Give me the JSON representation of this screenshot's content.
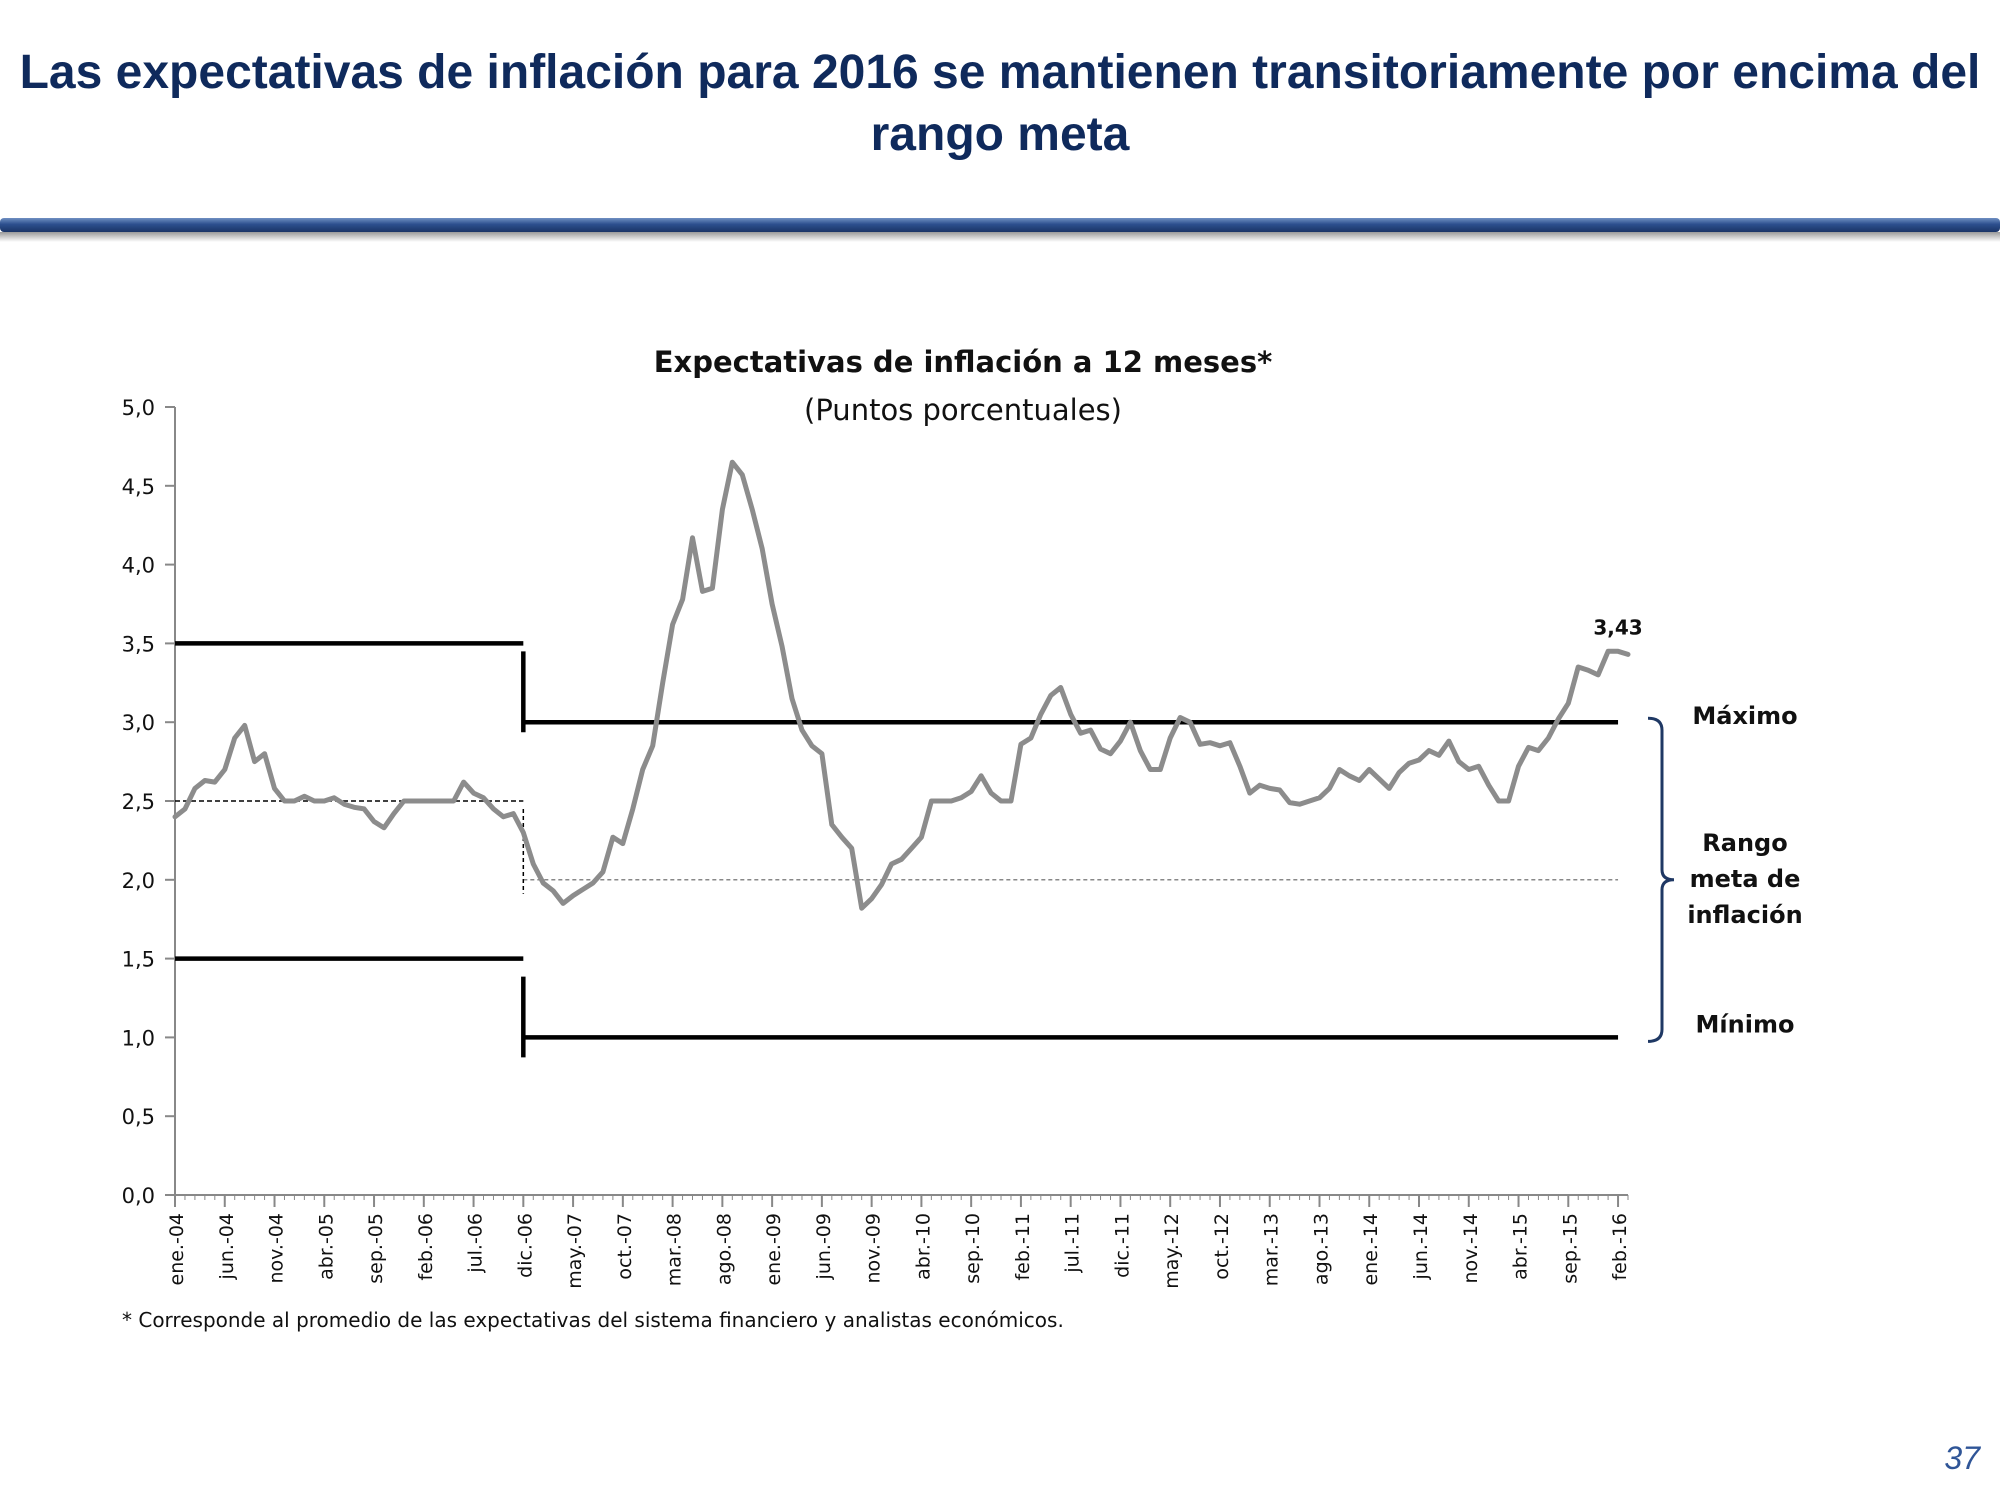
{
  "slide": {
    "title": "Las expectativas de inflación para 2016 se mantienen transitoriamente por encima del rango meta",
    "footnote": "* Corresponde al promedio de las expectativas del sistema financiero y analistas económicos.",
    "page_number": "37"
  },
  "chart_data": {
    "type": "line",
    "title": "Expectativas de inflación a 12 meses*",
    "subtitle": "(Puntos porcentuales)",
    "xlabel": "",
    "ylabel": "",
    "ylim": [
      0,
      5
    ],
    "yticks": [
      "0,0",
      "0,5",
      "1,0",
      "1,5",
      "2,0",
      "2,5",
      "3,0",
      "3,5",
      "4,0",
      "4,5",
      "5,0"
    ],
    "xtick_labels": [
      "ene.-04",
      "jun.-04",
      "nov.-04",
      "abr.-05",
      "sep.-05",
      "feb.-06",
      "jul.-06",
      "dic.-06",
      "may.-07",
      "oct.-07",
      "mar.-08",
      "ago.-08",
      "ene.-09",
      "jun.-09",
      "nov.-09",
      "abr.-10",
      "sep.-10",
      "feb.-11",
      "jul.-11",
      "dic.-11",
      "may.-12",
      "oct.-12",
      "mar.-13",
      "ago.-13",
      "ene.-14",
      "jun.-14",
      "nov.-14",
      "abr.-15",
      "sep.-15",
      "feb.-16"
    ],
    "x_start": "ene.-04",
    "series": [
      {
        "color": "#8c8c8c",
        "values": [
          2.4,
          2.45,
          2.58,
          2.63,
          2.62,
          2.7,
          2.9,
          2.98,
          2.75,
          2.8,
          2.58,
          2.5,
          2.5,
          2.53,
          2.5,
          2.5,
          2.52,
          2.48,
          2.46,
          2.45,
          2.37,
          2.33,
          2.42,
          2.5,
          2.5,
          2.5,
          2.5,
          2.5,
          2.5,
          2.62,
          2.55,
          2.52,
          2.45,
          2.4,
          2.42,
          2.3,
          2.1,
          1.98,
          1.93,
          1.85,
          1.9,
          1.94,
          1.98,
          2.05,
          2.27,
          2.23,
          2.45,
          2.7,
          2.85,
          3.25,
          3.62,
          3.78,
          4.17,
          3.83,
          3.85,
          4.35,
          4.65,
          4.57,
          4.35,
          4.1,
          3.75,
          3.48,
          3.15,
          2.95,
          2.85,
          2.8,
          2.35,
          2.27,
          2.2,
          1.82,
          1.88,
          1.97,
          2.1,
          2.13,
          2.2,
          2.27,
          2.5,
          2.5,
          2.5,
          2.52,
          2.56,
          2.66,
          2.55,
          2.5,
          2.5,
          2.86,
          2.9,
          3.05,
          3.17,
          3.22,
          3.05,
          2.93,
          2.95,
          2.83,
          2.8,
          2.88,
          3.0,
          2.82,
          2.7,
          2.7,
          2.9,
          3.03,
          3.0,
          2.86,
          2.87,
          2.85,
          2.87,
          2.72,
          2.55,
          2.6,
          2.58,
          2.57,
          2.49,
          2.48,
          2.5,
          2.52,
          2.58,
          2.7,
          2.66,
          2.63,
          2.7,
          2.64,
          2.58,
          2.68,
          2.74,
          2.76,
          2.82,
          2.79,
          2.88,
          2.75,
          2.7,
          2.72,
          2.6,
          2.5,
          2.5,
          2.72,
          2.84,
          2.82,
          2.9,
          3.02,
          3.12,
          3.35,
          3.33,
          3.3,
          3.45,
          3.45,
          3.43
        ]
      }
    ],
    "last_value_label": "3,43",
    "target_range": {
      "label_max": "Máximo",
      "label_range": "Rango meta de inflación",
      "label_min": "Mínimo",
      "periods": [
        {
          "from": "ene.-04",
          "to": "dic.-06",
          "min": 1.5,
          "center": 2.5,
          "max": 3.5
        },
        {
          "from": "dic.-06",
          "to": "feb.-16",
          "min": 1.0,
          "center": 2.0,
          "max": 3.0
        }
      ]
    },
    "grid": false,
    "legend": "none"
  }
}
